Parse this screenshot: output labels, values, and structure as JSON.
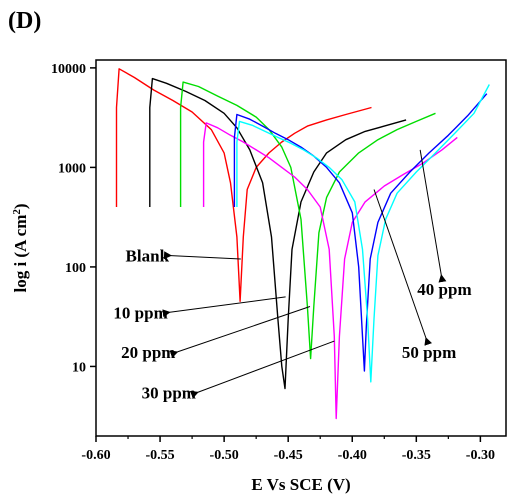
{
  "panel_label": "(D)",
  "chart_data": {
    "type": "line",
    "title": "",
    "xlabel": "E Vs SCE (V)",
    "ylabel": "log i (A cm",
    "ylabel_sup": "2",
    "ylabel_end": ")",
    "xlim": [
      -0.6,
      -0.28
    ],
    "ylim": [
      2,
      12000
    ],
    "yscale": "log",
    "x_ticks": [
      -0.6,
      -0.55,
      -0.5,
      -0.45,
      -0.4,
      -0.35,
      -0.3
    ],
    "x_tick_labels": [
      "-0.60",
      "-0.55",
      "-0.50",
      "-0.45",
      "-0.40",
      "-0.35",
      "-0.30"
    ],
    "y_ticks": [
      10,
      100,
      1000,
      10000
    ],
    "y_tick_labels": [
      "10",
      "100",
      "1000",
      "10000"
    ],
    "series": [
      {
        "color": "#ff0000",
        "x": [
          -0.584,
          -0.584,
          -0.582,
          -0.57,
          -0.555,
          -0.54,
          -0.525,
          -0.51,
          -0.5,
          -0.495,
          -0.49,
          -0.4875,
          -0.485,
          -0.482,
          -0.475,
          -0.465,
          -0.455,
          -0.445,
          -0.435,
          -0.42,
          -0.405,
          -0.385
        ],
        "y": [
          400,
          4000,
          9800,
          8000,
          6000,
          4700,
          3600,
          2400,
          1400,
          700,
          200,
          45,
          200,
          600,
          1000,
          1400,
          1800,
          2200,
          2600,
          3000,
          3400,
          4000
        ]
      },
      {
        "color": "#000000",
        "x": [
          -0.558,
          -0.558,
          -0.556,
          -0.545,
          -0.53,
          -0.515,
          -0.5,
          -0.49,
          -0.48,
          -0.47,
          -0.463,
          -0.458,
          -0.455,
          -0.4525,
          -0.45,
          -0.447,
          -0.44,
          -0.43,
          -0.42,
          -0.405,
          -0.39,
          -0.375,
          -0.358
        ],
        "y": [
          400,
          4000,
          7800,
          7000,
          5800,
          4700,
          3500,
          2500,
          1500,
          700,
          200,
          30,
          10,
          6,
          30,
          150,
          450,
          900,
          1400,
          1900,
          2300,
          2600,
          3000
        ]
      },
      {
        "color": "#00dd00",
        "x": [
          -0.534,
          -0.534,
          -0.532,
          -0.52,
          -0.505,
          -0.49,
          -0.475,
          -0.465,
          -0.455,
          -0.448,
          -0.44,
          -0.435,
          -0.4325,
          -0.43,
          -0.426,
          -0.42,
          -0.41,
          -0.395,
          -0.38,
          -0.365,
          -0.35,
          -0.335
        ],
        "y": [
          400,
          4000,
          7200,
          6500,
          5200,
          4200,
          3200,
          2400,
          1600,
          1000,
          300,
          40,
          12,
          40,
          220,
          500,
          900,
          1400,
          1900,
          2400,
          2900,
          3500
        ]
      },
      {
        "color": "#ff00ff",
        "x": [
          -0.516,
          -0.516,
          -0.514,
          -0.505,
          -0.495,
          -0.485,
          -0.475,
          -0.465,
          -0.455,
          -0.445,
          -0.435,
          -0.425,
          -0.418,
          -0.414,
          -0.4125,
          -0.41,
          -0.406,
          -0.4,
          -0.39,
          -0.375,
          -0.36,
          -0.345,
          -0.33,
          -0.318
        ],
        "y": [
          400,
          1800,
          2800,
          2500,
          2100,
          1800,
          1500,
          1250,
          1000,
          800,
          600,
          400,
          150,
          20,
          3,
          20,
          120,
          280,
          450,
          650,
          850,
          1100,
          1500,
          2000
        ]
      },
      {
        "color": "#0000ff",
        "x": [
          -0.492,
          -0.492,
          -0.49,
          -0.48,
          -0.47,
          -0.46,
          -0.45,
          -0.44,
          -0.43,
          -0.42,
          -0.41,
          -0.4,
          -0.395,
          -0.392,
          -0.3905,
          -0.389,
          -0.386,
          -0.38,
          -0.37,
          -0.355,
          -0.34,
          -0.325,
          -0.31,
          -0.295
        ],
        "y": [
          400,
          2000,
          3400,
          3050,
          2600,
          2200,
          1900,
          1600,
          1300,
          1000,
          700,
          350,
          100,
          20,
          9,
          25,
          120,
          280,
          550,
          900,
          1400,
          2100,
          3300,
          5500
        ]
      },
      {
        "color": "#00ffff",
        "x": [
          -0.49,
          -0.49,
          -0.488,
          -0.478,
          -0.468,
          -0.458,
          -0.448,
          -0.438,
          -0.428,
          -0.418,
          -0.408,
          -0.398,
          -0.392,
          -0.388,
          -0.3855,
          -0.383,
          -0.38,
          -0.374,
          -0.365,
          -0.35,
          -0.335,
          -0.32,
          -0.305,
          -0.293
        ],
        "y": [
          400,
          1800,
          2900,
          2650,
          2300,
          2000,
          1750,
          1500,
          1250,
          1000,
          750,
          450,
          150,
          30,
          7,
          30,
          130,
          300,
          550,
          900,
          1400,
          2200,
          3500,
          6800
        ]
      }
    ],
    "annotations": [
      {
        "text": "Blank",
        "x": -0.543,
        "y": 130,
        "target": [
          -0.487,
          120
        ]
      },
      {
        "text": "10 ppm",
        "x": -0.544,
        "y": 35,
        "target": [
          -0.452,
          50
        ]
      },
      {
        "text": "20 ppm",
        "x": -0.538,
        "y": 14,
        "target": [
          -0.433,
          40
        ]
      },
      {
        "text": "30 ppm",
        "x": -0.522,
        "y": 5.5,
        "target": [
          -0.414,
          18
        ]
      },
      {
        "text": "40 ppm",
        "x": -0.343,
        "y": 60,
        "target": [
          -0.347,
          1500
        ]
      },
      {
        "text": "50 ppm",
        "x": -0.355,
        "y": 14,
        "target": [
          -0.383,
          600
        ]
      }
    ]
  }
}
